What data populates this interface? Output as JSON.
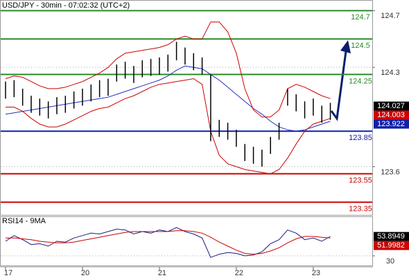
{
  "chart_data": [
    {
      "type": "range-bar",
      "title": "USD/JPY - 30min - 07:02:32 (UTC+2)",
      "categories": [
        "17",
        null,
        null,
        null,
        null,
        null,
        null,
        null,
        null,
        "20",
        null,
        null,
        null,
        null,
        null,
        null,
        null,
        null,
        "21",
        null,
        null,
        null,
        null,
        null,
        null,
        null,
        null,
        "22",
        null,
        null,
        null,
        null,
        null,
        null,
        null,
        null,
        "23",
        null,
        null
      ],
      "bars": {
        "color": "#000000",
        "high": [
          124.2,
          124.21,
          124.15,
          124.1,
          124.08,
          124.06,
          124.09,
          124.1,
          124.13,
          124.15,
          124.18,
          124.21,
          124.22,
          124.32,
          124.34,
          124.31,
          124.35,
          124.36,
          124.37,
          124.39,
          124.48,
          124.44,
          124.4,
          124.37,
          124.25,
          123.93,
          123.91,
          123.86,
          123.76,
          123.74,
          123.72,
          123.81,
          123.91,
          124.15,
          124.11,
          124.06,
          124.08,
          124.03,
          124.05
        ],
        "low": [
          124.08,
          124.09,
          124.03,
          123.98,
          123.96,
          123.94,
          123.97,
          123.98,
          124.01,
          124.03,
          124.06,
          124.09,
          124.1,
          124.2,
          124.22,
          124.19,
          124.23,
          124.24,
          124.25,
          124.27,
          124.35,
          124.32,
          124.28,
          124.25,
          123.78,
          123.81,
          123.79,
          123.74,
          123.64,
          123.62,
          123.6,
          123.69,
          123.79,
          124.03,
          123.99,
          123.94,
          123.96,
          123.91,
          123.93
        ]
      },
      "lines": [
        {
          "color": "#1f2fbf",
          "values": [
            123.97,
            123.98,
            123.99,
            124.0,
            124.01,
            124.02,
            124.03,
            124.04,
            124.05,
            124.06,
            124.07,
            124.08,
            124.09,
            124.11,
            124.13,
            124.15,
            124.17,
            124.19,
            124.21,
            124.24,
            124.28,
            124.31,
            124.3,
            124.29,
            124.25,
            124.21,
            124.16,
            124.11,
            124.06,
            124.01,
            123.97,
            123.92,
            123.88,
            123.86,
            123.85,
            123.86,
            123.88,
            123.9,
            123.92
          ]
        },
        {
          "color": "#cc0000",
          "values": [
            124.22,
            124.24,
            124.23,
            124.2,
            124.17,
            124.15,
            124.15,
            124.16,
            124.18,
            124.2,
            124.23,
            124.26,
            124.3,
            124.36,
            124.4,
            124.41,
            124.42,
            124.43,
            124.44,
            124.46,
            124.5,
            124.52,
            124.5,
            124.5,
            124.62,
            124.62,
            124.55,
            124.4,
            124.15,
            124.0,
            123.95,
            123.95,
            124.0,
            124.15,
            124.18,
            124.16,
            124.13,
            124.1,
            124.08
          ]
        },
        {
          "color": "#cc0000",
          "values": [
            124.02,
            124.02,
            123.99,
            123.94,
            123.9,
            123.88,
            123.88,
            123.9,
            123.93,
            123.96,
            123.99,
            124.01,
            124.02,
            124.05,
            124.08,
            124.1,
            124.13,
            124.16,
            124.18,
            124.19,
            124.2,
            124.21,
            124.22,
            124.18,
            123.85,
            123.68,
            123.62,
            123.6,
            123.58,
            123.57,
            123.56,
            123.55,
            123.58,
            123.66,
            123.76,
            123.85,
            123.9,
            123.92,
            123.94
          ]
        }
      ],
      "levels": [
        {
          "value": 124.7,
          "color": "#2a8a2a"
        },
        {
          "value": 124.5,
          "color": "#2a8a2a"
        },
        {
          "value": 124.25,
          "color": "#2a8a2a"
        },
        {
          "value": 123.85,
          "color": "#1020a8"
        },
        {
          "value": 123.55,
          "color": "#cc0000"
        },
        {
          "value": 123.35,
          "color": "#cc0000"
        }
      ],
      "price_tags": [
        {
          "value": 124.027,
          "color": "#000000"
        },
        {
          "value": 124.003,
          "color": "#cc0000"
        },
        {
          "value": 123.922,
          "color": "#1020a8"
        }
      ],
      "ylim": [
        123.26,
        124.77
      ],
      "yticks": [
        124.7,
        124.3,
        123.6
      ],
      "grid": true
    },
    {
      "type": "line",
      "title": "RSI14 - 9MA",
      "lines": [
        {
          "color": "#1a1a80",
          "values": [
            48,
            55,
            50,
            44,
            45,
            42,
            48,
            47,
            52,
            55,
            58,
            57,
            60,
            63,
            62,
            57,
            60,
            58,
            62,
            60,
            65,
            60,
            57,
            52,
            28,
            32,
            34,
            33,
            30,
            31,
            35,
            45,
            50,
            62,
            58,
            50,
            52,
            48,
            54
          ]
        },
        {
          "color": "#cc0000",
          "values": [
            52,
            52,
            51,
            50,
            48,
            47,
            46,
            46,
            47,
            49,
            51,
            53,
            55,
            57,
            59,
            60,
            60,
            60,
            60,
            60,
            61,
            61,
            60,
            58,
            53,
            47,
            42,
            37,
            33,
            32,
            33,
            36,
            40,
            46,
            51,
            54,
            54,
            53,
            52
          ]
        }
      ],
      "price_tags": [
        {
          "value": 53.8949,
          "color": "#000000"
        },
        {
          "value": 51.9982,
          "color": "#cc0000"
        }
      ],
      "ylim": [
        18,
        78
      ],
      "yticks": [
        30
      ],
      "grid": true
    }
  ]
}
